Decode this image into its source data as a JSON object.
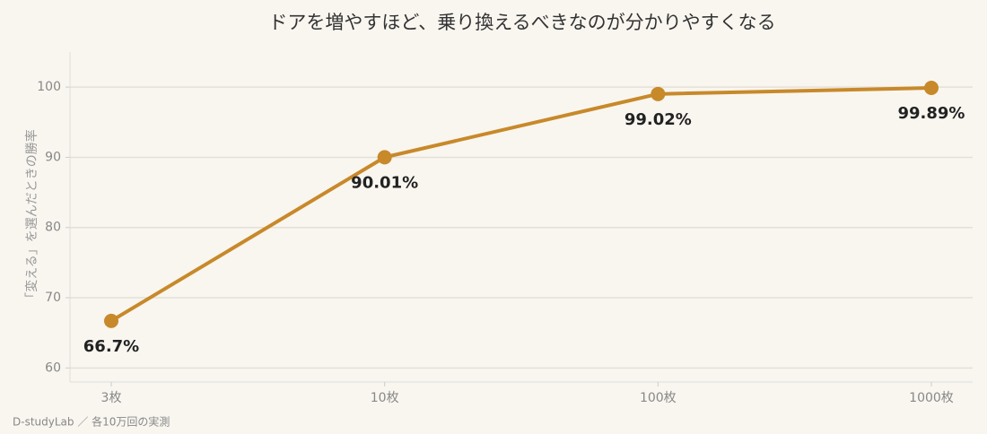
{
  "chart_data": {
    "type": "line",
    "title": "ドアを増やすほど、乗り換えるべきなのが分かりやすくなる",
    "y_label": "「変える」を選んだときの勝率",
    "source": "D-studyLab ／ 各10万回の実測",
    "categories": [
      "3枚",
      "10枚",
      "100枚",
      "1000枚"
    ],
    "values": [
      66.7,
      90.01,
      99.02,
      99.89
    ],
    "value_labels": [
      "66.7%",
      "90.01%",
      "99.02%",
      "99.89%"
    ],
    "color": "#c8892a",
    "ylim": [
      58,
      105
    ],
    "yticks": [
      60,
      70,
      80,
      90,
      100
    ],
    "grid": true
  }
}
